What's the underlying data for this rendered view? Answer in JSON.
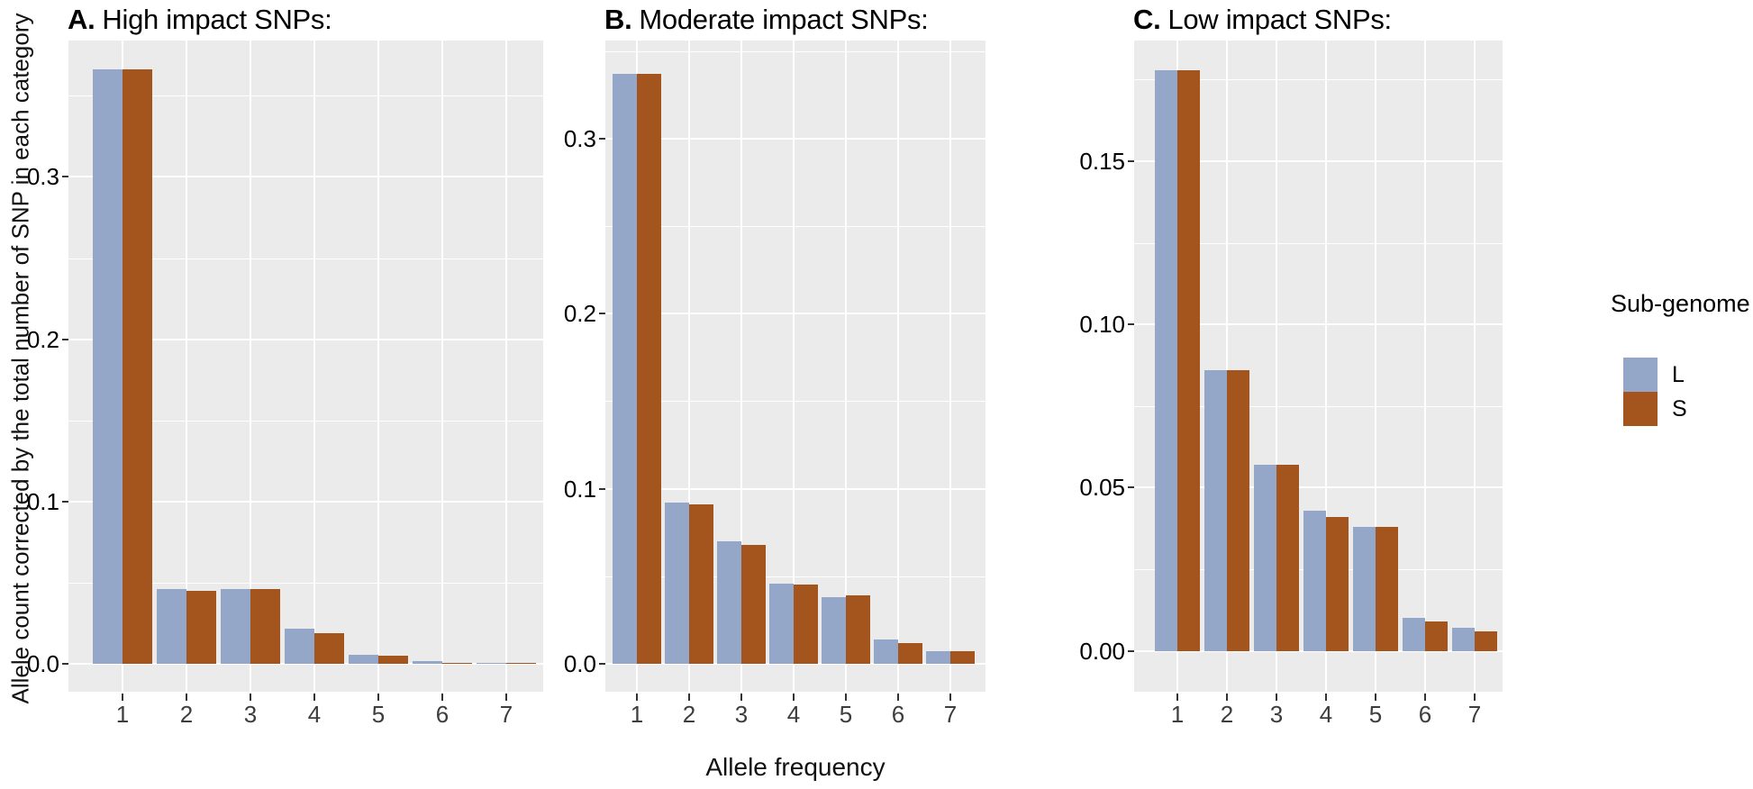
{
  "figure": {
    "xlabel": "Allele frequency",
    "ylabel": "Allele count corrected by the total number of SNP in each category",
    "legend": {
      "title": "Sub-genome",
      "entries": [
        {
          "label": "L",
          "color": "#94a7c8"
        },
        {
          "label": "S",
          "color": "#a4551e"
        }
      ]
    },
    "colors": {
      "panel_background": "#ebebeb",
      "gridline": "#ffffff",
      "ytick_text": "#000000",
      "xtick_text": "#3d3d3d",
      "bar_L": "#94a7c8",
      "bar_S": "#a4551e"
    }
  },
  "chart_data": [
    {
      "type": "bar",
      "panel_label": "A.",
      "title": "High impact SNPs:",
      "categories": [
        "1",
        "2",
        "3",
        "4",
        "5",
        "6",
        "7"
      ],
      "series": [
        {
          "name": "L",
          "values": [
            0.366,
            0.046,
            0.046,
            0.022,
            0.006,
            0.002,
            0.001
          ]
        },
        {
          "name": "S",
          "values": [
            0.366,
            0.045,
            0.046,
            0.019,
            0.005,
            0.001,
            0.001
          ]
        }
      ],
      "ytick_labels": [
        "0.0",
        "0.1",
        "0.2",
        "0.3"
      ],
      "ytick_values": [
        0.0,
        0.1,
        0.2,
        0.3
      ],
      "minor_step": 0.05,
      "ylim": [
        -0.017,
        0.384
      ],
      "grid": true,
      "legend_position": "right-of-figure"
    },
    {
      "type": "bar",
      "panel_label": "B.",
      "title": "Moderate impact SNPs:",
      "categories": [
        "1",
        "2",
        "3",
        "4",
        "5",
        "6",
        "7"
      ],
      "series": [
        {
          "name": "L",
          "values": [
            0.337,
            0.092,
            0.07,
            0.046,
            0.038,
            0.014,
            0.007
          ]
        },
        {
          "name": "S",
          "values": [
            0.337,
            0.091,
            0.068,
            0.045,
            0.039,
            0.012,
            0.007
          ]
        }
      ],
      "ytick_labels": [
        "0.0",
        "0.1",
        "0.2",
        "0.3"
      ],
      "ytick_values": [
        0.0,
        0.1,
        0.2,
        0.3
      ],
      "minor_step": 0.05,
      "ylim": [
        -0.016,
        0.356
      ],
      "grid": true,
      "legend_position": "right-of-figure"
    },
    {
      "type": "bar",
      "panel_label": "C.",
      "title": "Low impact SNPs:",
      "categories": [
        "1",
        "2",
        "3",
        "4",
        "5",
        "6",
        "7"
      ],
      "series": [
        {
          "name": "L",
          "values": [
            0.178,
            0.086,
            0.057,
            0.043,
            0.038,
            0.01,
            0.007
          ]
        },
        {
          "name": "S",
          "values": [
            0.178,
            0.086,
            0.057,
            0.041,
            0.038,
            0.009,
            0.006
          ]
        }
      ],
      "ytick_labels": [
        "0.00",
        "0.05",
        "0.10",
        "0.15"
      ],
      "ytick_values": [
        0.0,
        0.05,
        0.1,
        0.15
      ],
      "minor_step": 0.025,
      "ylim": [
        -0.0125,
        0.187
      ],
      "grid": true,
      "legend_position": "right-of-figure"
    }
  ]
}
